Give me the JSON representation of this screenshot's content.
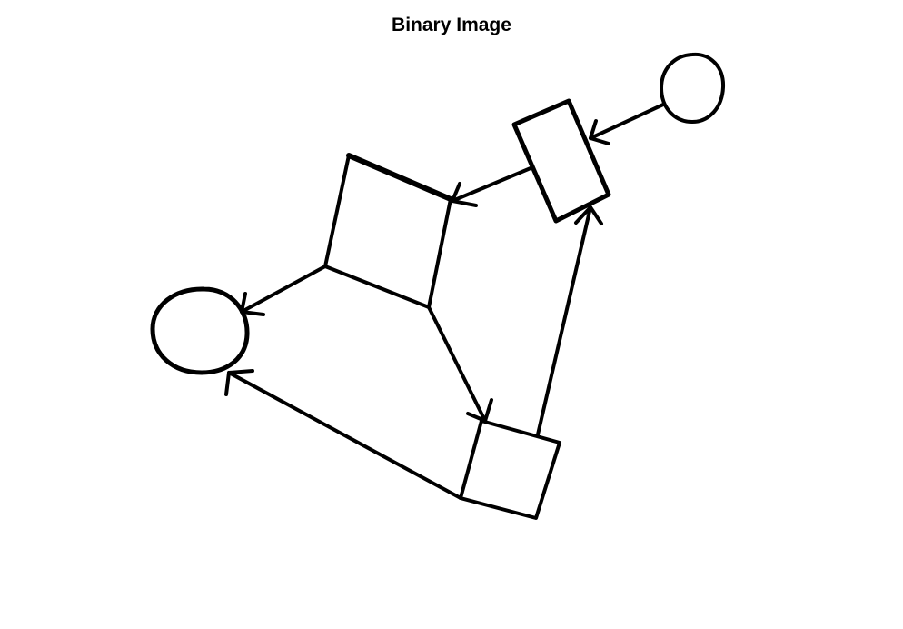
{
  "figure": {
    "title": "Binary Image",
    "background_color": "#ffffff",
    "ink_color": "#000000"
  },
  "diagram": {
    "nodes": [
      {
        "id": "circle-top-right",
        "shape": "circle"
      },
      {
        "id": "tilted-rectangle",
        "shape": "rectangle"
      },
      {
        "id": "large-quadrilateral",
        "shape": "quadrilateral"
      },
      {
        "id": "circle-left",
        "shape": "circle"
      },
      {
        "id": "small-square",
        "shape": "square"
      }
    ],
    "edges": [
      {
        "from": "circle-top-right",
        "to": "tilted-rectangle"
      },
      {
        "from": "tilted-rectangle",
        "to": "large-quadrilateral"
      },
      {
        "from": "large-quadrilateral",
        "to": "circle-left"
      },
      {
        "from": "large-quadrilateral",
        "to": "small-square"
      },
      {
        "from": "small-square",
        "to": "circle-left"
      },
      {
        "from": "small-square",
        "to": "tilted-rectangle"
      }
    ]
  }
}
